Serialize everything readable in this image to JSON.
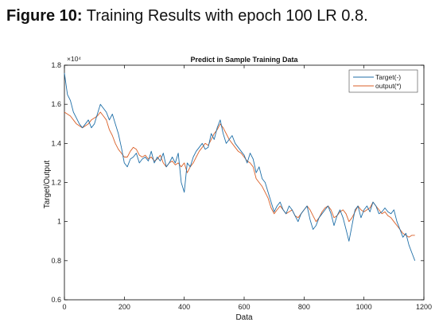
{
  "figure_caption": {
    "label": "Figure 10:",
    "text": " Training Results with epoch 100 LR 0.8."
  },
  "chart_data": {
    "type": "line",
    "title": "Predict in Sample Training Data",
    "xlabel": "Data",
    "ylabel": "Target/Output",
    "y_exponent_label": "×10⁴",
    "xlim": [
      0,
      1200
    ],
    "ylim": [
      0.6,
      1.8
    ],
    "x_ticks": [
      0,
      200,
      400,
      600,
      800,
      1000,
      1200
    ],
    "y_ticks": [
      0.6,
      0.8,
      1,
      1.2,
      1.4,
      1.6,
      1.8
    ],
    "y_tick_labels": [
      "0.6",
      "0.8",
      "1",
      "1.2",
      "1.4",
      "1.6",
      "1.8"
    ],
    "legend_position": "top-right",
    "series": [
      {
        "name": "Target(-)",
        "color": "#1f6fa8",
        "x": [
          0,
          10,
          20,
          30,
          40,
          50,
          60,
          70,
          80,
          90,
          100,
          110,
          120,
          130,
          140,
          150,
          160,
          170,
          180,
          190,
          200,
          210,
          220,
          230,
          240,
          250,
          260,
          270,
          280,
          290,
          300,
          310,
          320,
          330,
          340,
          350,
          360,
          370,
          380,
          390,
          400,
          410,
          420,
          430,
          440,
          450,
          460,
          470,
          480,
          490,
          500,
          510,
          520,
          530,
          540,
          550,
          560,
          570,
          580,
          590,
          600,
          610,
          620,
          630,
          640,
          650,
          660,
          670,
          680,
          690,
          700,
          710,
          720,
          730,
          740,
          750,
          760,
          770,
          780,
          790,
          800,
          810,
          820,
          830,
          840,
          850,
          860,
          870,
          880,
          890,
          900,
          910,
          920,
          930,
          940,
          950,
          960,
          970,
          980,
          990,
          1000,
          1010,
          1020,
          1030,
          1040,
          1050,
          1060,
          1070,
          1080,
          1090,
          1100,
          1110,
          1120,
          1130,
          1140,
          1150,
          1160,
          1170
        ],
        "y": [
          1.76,
          1.65,
          1.62,
          1.56,
          1.53,
          1.5,
          1.48,
          1.5,
          1.52,
          1.48,
          1.5,
          1.55,
          1.6,
          1.58,
          1.56,
          1.52,
          1.55,
          1.5,
          1.45,
          1.38,
          1.3,
          1.28,
          1.32,
          1.33,
          1.35,
          1.3,
          1.32,
          1.33,
          1.31,
          1.36,
          1.3,
          1.33,
          1.31,
          1.35,
          1.28,
          1.3,
          1.33,
          1.3,
          1.35,
          1.2,
          1.15,
          1.3,
          1.28,
          1.33,
          1.36,
          1.38,
          1.4,
          1.37,
          1.38,
          1.45,
          1.42,
          1.48,
          1.52,
          1.45,
          1.4,
          1.42,
          1.44,
          1.4,
          1.38,
          1.36,
          1.34,
          1.3,
          1.35,
          1.32,
          1.25,
          1.28,
          1.22,
          1.2,
          1.15,
          1.1,
          1.05,
          1.08,
          1.1,
          1.06,
          1.04,
          1.08,
          1.06,
          1.03,
          1.0,
          1.04,
          1.06,
          1.08,
          1.01,
          0.96,
          0.98,
          1.02,
          1.04,
          1.06,
          1.08,
          1.04,
          0.98,
          1.03,
          1.06,
          1.02,
          0.96,
          0.9,
          0.98,
          1.06,
          1.08,
          1.02,
          1.06,
          1.08,
          1.05,
          1.1,
          1.08,
          1.04,
          1.05,
          1.07,
          1.05,
          1.04,
          1.06,
          1.0,
          0.96,
          0.92,
          0.94,
          0.88,
          0.84,
          0.8
        ]
      },
      {
        "name": "output(*)",
        "color": "#d95f27",
        "x": [
          0,
          10,
          20,
          30,
          40,
          50,
          60,
          70,
          80,
          90,
          100,
          110,
          120,
          130,
          140,
          150,
          160,
          170,
          180,
          190,
          200,
          210,
          220,
          230,
          240,
          250,
          260,
          270,
          280,
          290,
          300,
          310,
          320,
          330,
          340,
          350,
          360,
          370,
          380,
          390,
          400,
          410,
          420,
          430,
          440,
          450,
          460,
          470,
          480,
          490,
          500,
          510,
          520,
          530,
          540,
          550,
          560,
          570,
          580,
          590,
          600,
          610,
          620,
          630,
          640,
          650,
          660,
          670,
          680,
          690,
          700,
          710,
          720,
          730,
          740,
          750,
          760,
          770,
          780,
          790,
          800,
          810,
          820,
          830,
          840,
          850,
          860,
          870,
          880,
          890,
          900,
          910,
          920,
          930,
          940,
          950,
          960,
          970,
          980,
          990,
          1000,
          1010,
          1020,
          1030,
          1040,
          1050,
          1060,
          1070,
          1080,
          1090,
          1100,
          1110,
          1120,
          1130,
          1140,
          1150,
          1160,
          1170
        ],
        "y": [
          1.56,
          1.55,
          1.54,
          1.52,
          1.5,
          1.49,
          1.48,
          1.49,
          1.5,
          1.52,
          1.53,
          1.54,
          1.56,
          1.54,
          1.52,
          1.47,
          1.44,
          1.4,
          1.37,
          1.35,
          1.33,
          1.33,
          1.36,
          1.38,
          1.37,
          1.34,
          1.33,
          1.34,
          1.32,
          1.33,
          1.31,
          1.32,
          1.34,
          1.3,
          1.28,
          1.3,
          1.31,
          1.29,
          1.3,
          1.28,
          1.3,
          1.25,
          1.28,
          1.3,
          1.33,
          1.36,
          1.38,
          1.4,
          1.39,
          1.42,
          1.45,
          1.47,
          1.5,
          1.48,
          1.45,
          1.42,
          1.4,
          1.38,
          1.36,
          1.35,
          1.33,
          1.31,
          1.3,
          1.28,
          1.22,
          1.2,
          1.18,
          1.15,
          1.12,
          1.07,
          1.04,
          1.06,
          1.08,
          1.06,
          1.04,
          1.05,
          1.06,
          1.03,
          1.02,
          1.04,
          1.06,
          1.08,
          1.06,
          1.03,
          1.0,
          1.02,
          1.05,
          1.07,
          1.08,
          1.06,
          1.02,
          1.03,
          1.05,
          1.06,
          1.04,
          1.0,
          1.02,
          1.05,
          1.08,
          1.06,
          1.05,
          1.06,
          1.07,
          1.1,
          1.08,
          1.06,
          1.04,
          1.05,
          1.03,
          1.02,
          1.0,
          0.98,
          0.96,
          0.94,
          0.93,
          0.92,
          0.93,
          0.93
        ]
      }
    ]
  }
}
